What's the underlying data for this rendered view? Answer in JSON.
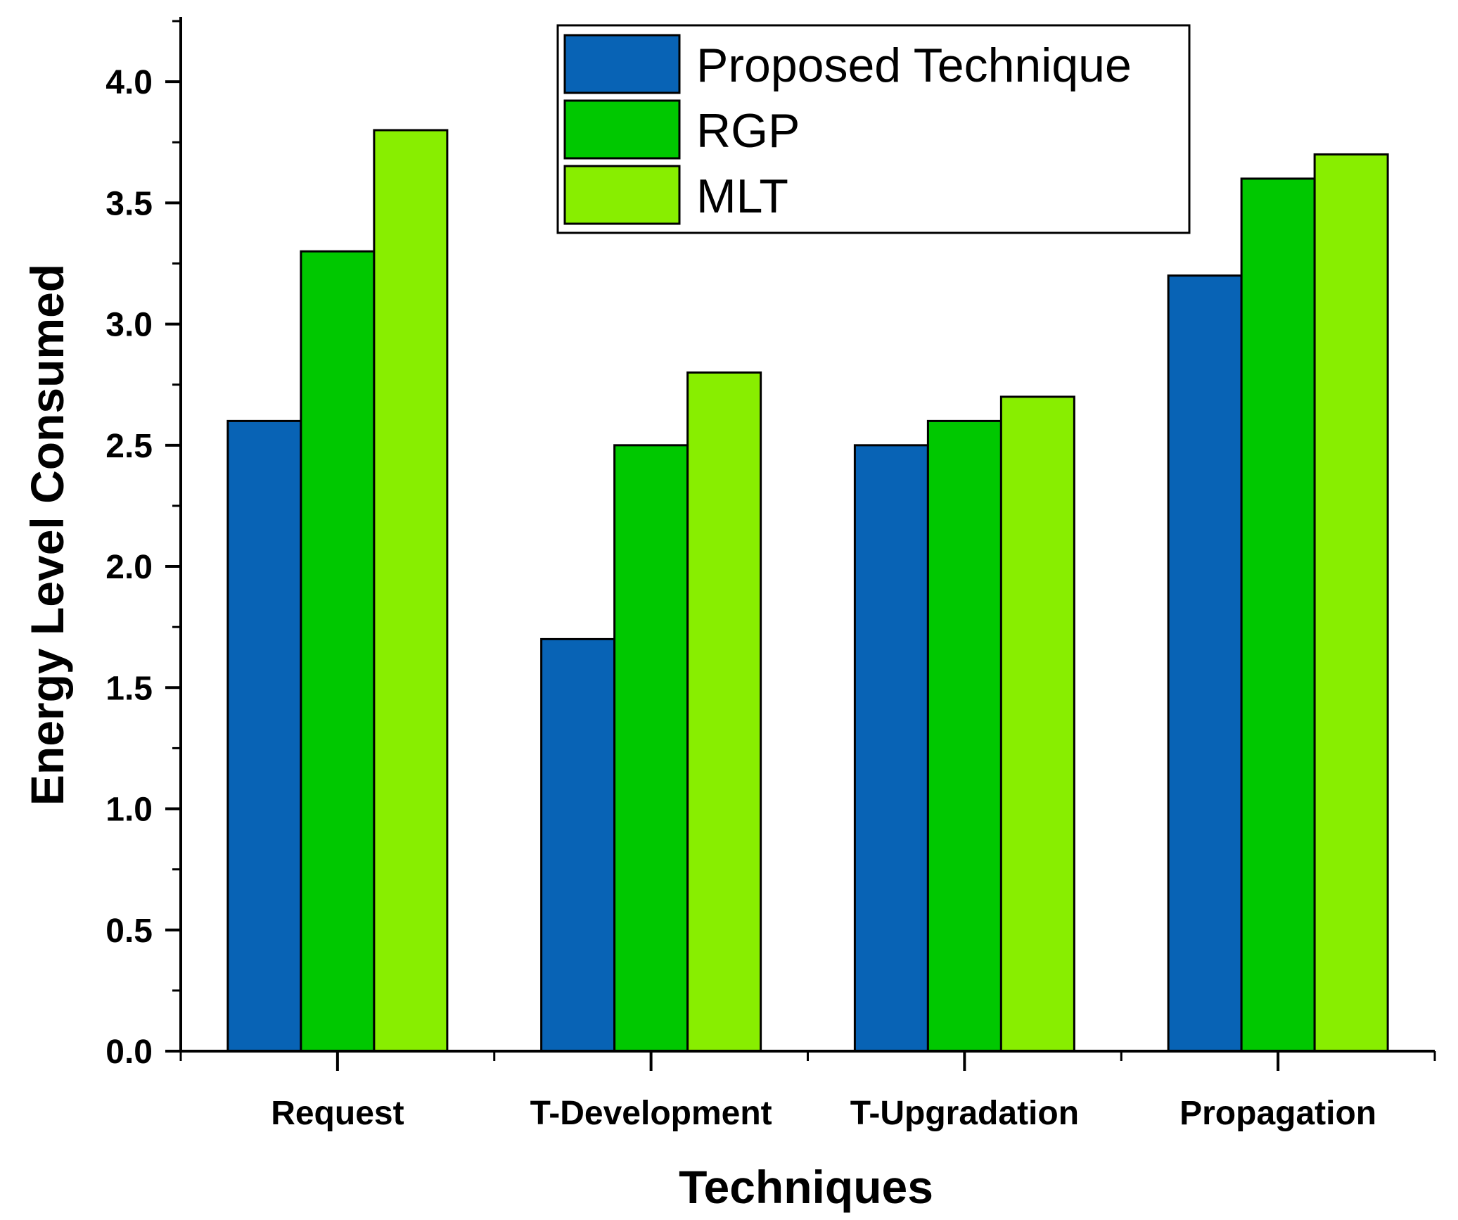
{
  "colors": {
    "proposed": "#0863b5",
    "rgp": "#00c800",
    "mlt": "#88ee00",
    "axis": "#000000",
    "background": "#ffffff"
  },
  "chart_data": {
    "type": "bar",
    "title": "",
    "xlabel": "Techniques",
    "ylabel": "Energy Level Consumed",
    "categories": [
      "Request",
      "T-Development",
      "T-Upgradation",
      "Propagation"
    ],
    "series": [
      {
        "name": "Proposed Technique",
        "color_key": "proposed",
        "values": [
          2.6,
          1.7,
          2.5,
          3.2
        ]
      },
      {
        "name": "RGP",
        "color_key": "rgp",
        "values": [
          3.3,
          2.5,
          2.6,
          3.6
        ]
      },
      {
        "name": "MLT",
        "color_key": "mlt",
        "values": [
          3.8,
          2.8,
          2.7,
          3.7
        ]
      }
    ],
    "ylim": [
      0,
      4.25
    ],
    "yticks": [
      "0.0",
      "0.5",
      "1.0",
      "1.5",
      "2.0",
      "2.5",
      "3.0",
      "3.5",
      "4.0"
    ],
    "legend_position": "top-center",
    "grid": false
  }
}
